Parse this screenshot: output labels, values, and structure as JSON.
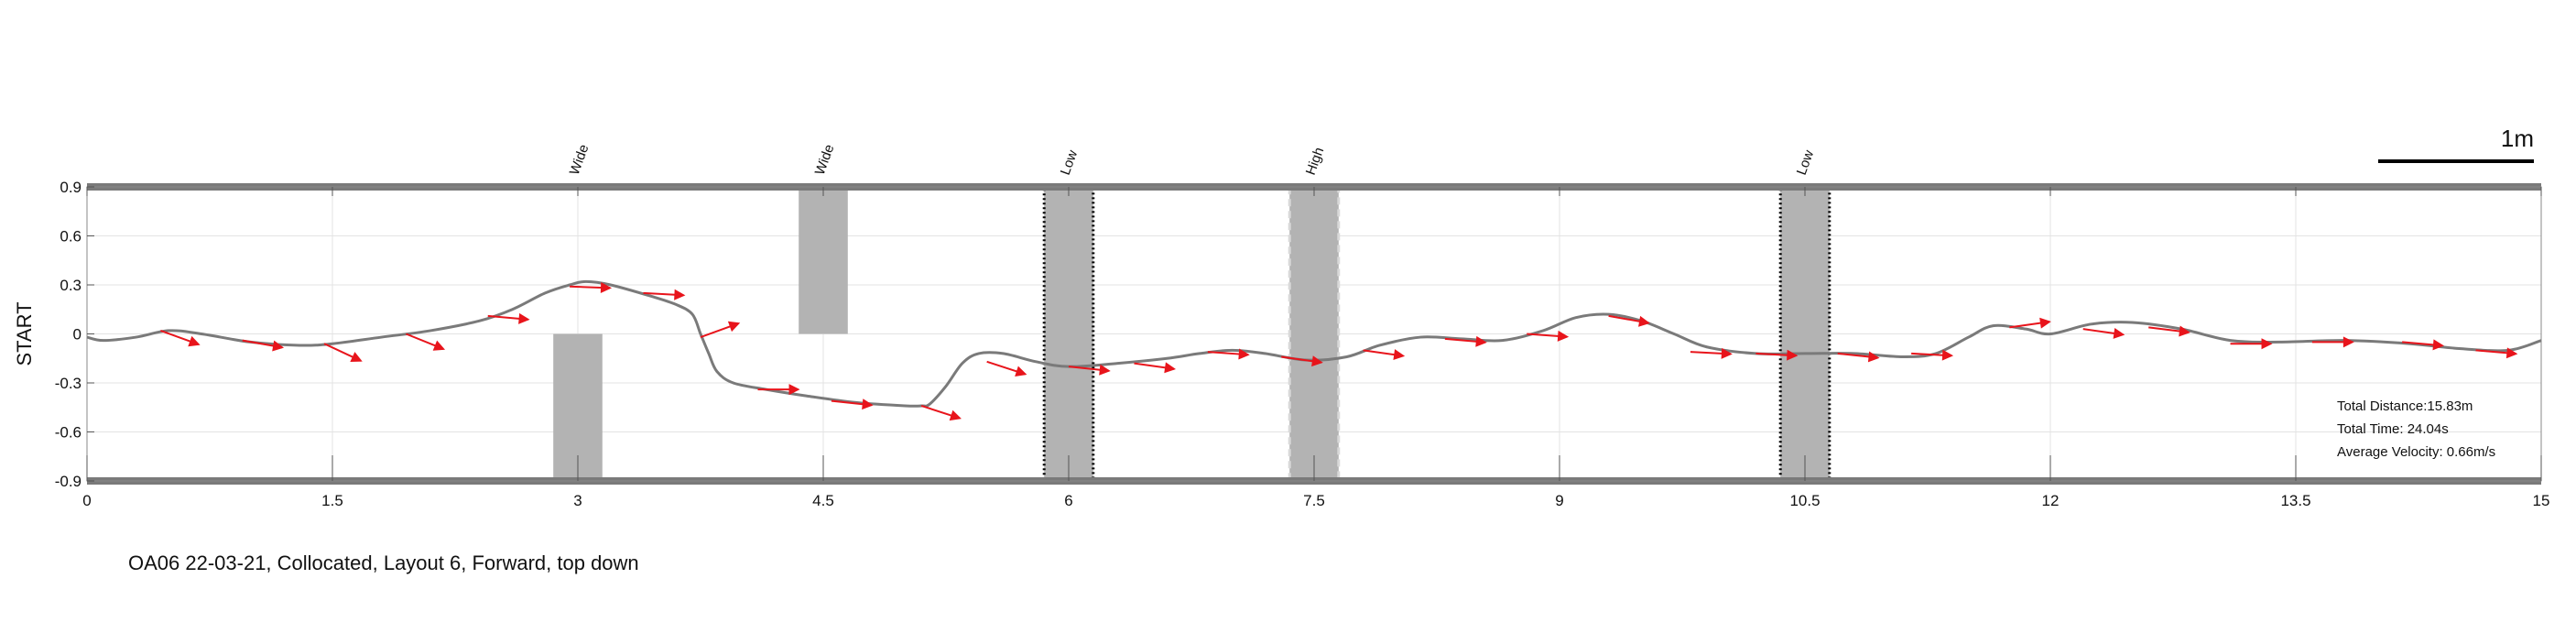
{
  "chart_data": {
    "type": "line",
    "ylabel": "START",
    "xlim": [
      0,
      15
    ],
    "ylim": [
      -0.9,
      0.9
    ],
    "x_ticks": [
      0,
      1.5,
      3,
      4.5,
      6,
      7.5,
      9,
      10.5,
      12,
      13.5,
      15
    ],
    "x_tick_labels": [
      "0",
      "1.5",
      "3",
      "4.5",
      "6",
      "7.5",
      "9",
      "10.5",
      "12",
      "13.5",
      "15"
    ],
    "y_ticks": [
      -0.9,
      -0.6,
      -0.3,
      0,
      0.3,
      0.6,
      0.9
    ],
    "y_tick_labels": [
      "-0.9",
      "-0.6",
      "-0.3",
      "0",
      "0.3",
      "0.6",
      "0.9"
    ],
    "grid": true,
    "path_color": "#7a7a7a",
    "arrow_color": "#e8141b",
    "obstacle_color": "#b3b3b3",
    "path": {
      "x": [
        0,
        0.1,
        0.3,
        0.5,
        0.7,
        1.0,
        1.3,
        1.5,
        1.8,
        2.1,
        2.4,
        2.6,
        2.8,
        2.95,
        3.05,
        3.2,
        3.45,
        3.6,
        3.7,
        3.75,
        3.8,
        3.85,
        3.95,
        4.15,
        4.4,
        4.7,
        5.0,
        5.1,
        5.15,
        5.25,
        5.35,
        5.45,
        5.6,
        5.8,
        6.0,
        6.3,
        6.6,
        6.8,
        7.0,
        7.2,
        7.45,
        7.7,
        7.9,
        8.15,
        8.4,
        8.65,
        8.9,
        9.1,
        9.3,
        9.5,
        9.7,
        9.9,
        10.2,
        10.5,
        10.8,
        11.1,
        11.3,
        11.5,
        11.65,
        11.85,
        12.0,
        12.25,
        12.5,
        12.8,
        13.1,
        13.4,
        13.8,
        14.2,
        14.5,
        14.8,
        15.0
      ],
      "y": [
        -0.02,
        -0.04,
        -0.02,
        0.02,
        0.0,
        -0.05,
        -0.07,
        -0.06,
        -0.02,
        0.02,
        0.08,
        0.15,
        0.25,
        0.3,
        0.32,
        0.3,
        0.23,
        0.18,
        0.12,
        0.0,
        -0.12,
        -0.23,
        -0.3,
        -0.34,
        -0.38,
        -0.42,
        -0.44,
        -0.44,
        -0.43,
        -0.32,
        -0.18,
        -0.12,
        -0.12,
        -0.17,
        -0.2,
        -0.18,
        -0.15,
        -0.12,
        -0.1,
        -0.12,
        -0.16,
        -0.14,
        -0.07,
        -0.02,
        -0.03,
        -0.04,
        0.02,
        0.1,
        0.12,
        0.08,
        0.0,
        -0.08,
        -0.12,
        -0.12,
        -0.12,
        -0.14,
        -0.12,
        -0.02,
        0.05,
        0.03,
        0.0,
        0.06,
        0.07,
        0.03,
        -0.04,
        -0.05,
        -0.04,
        -0.06,
        -0.09,
        -0.1,
        -0.04
      ]
    },
    "arrows": [
      {
        "x": 0.45,
        "y": 0.02,
        "angle": -20
      },
      {
        "x": 0.95,
        "y": -0.04,
        "angle": -10
      },
      {
        "x": 1.45,
        "y": -0.06,
        "angle": -25
      },
      {
        "x": 1.95,
        "y": 0.0,
        "angle": -22
      },
      {
        "x": 2.45,
        "y": 0.11,
        "angle": -5
      },
      {
        "x": 2.95,
        "y": 0.29,
        "angle": -2
      },
      {
        "x": 3.4,
        "y": 0.25,
        "angle": -3
      },
      {
        "x": 3.75,
        "y": -0.02,
        "angle": 20
      },
      {
        "x": 4.1,
        "y": -0.34,
        "angle": 0
      },
      {
        "x": 4.55,
        "y": -0.41,
        "angle": -6
      },
      {
        "x": 5.1,
        "y": -0.44,
        "angle": -18
      },
      {
        "x": 5.5,
        "y": -0.17,
        "angle": -18
      },
      {
        "x": 6.0,
        "y": -0.2,
        "angle": -6
      },
      {
        "x": 6.4,
        "y": -0.18,
        "angle": -8
      },
      {
        "x": 6.85,
        "y": -0.11,
        "angle": -4
      },
      {
        "x": 7.3,
        "y": -0.14,
        "angle": -8
      },
      {
        "x": 7.8,
        "y": -0.1,
        "angle": -8
      },
      {
        "x": 8.3,
        "y": -0.03,
        "angle": -5
      },
      {
        "x": 8.8,
        "y": 0.0,
        "angle": -4
      },
      {
        "x": 9.3,
        "y": 0.11,
        "angle": -10
      },
      {
        "x": 9.8,
        "y": -0.11,
        "angle": -3
      },
      {
        "x": 10.2,
        "y": -0.12,
        "angle": -3
      },
      {
        "x": 10.7,
        "y": -0.12,
        "angle": -6
      },
      {
        "x": 11.15,
        "y": -0.12,
        "angle": -3
      },
      {
        "x": 11.75,
        "y": 0.04,
        "angle": 8
      },
      {
        "x": 12.2,
        "y": 0.03,
        "angle": -8
      },
      {
        "x": 12.6,
        "y": 0.04,
        "angle": -7
      },
      {
        "x": 13.1,
        "y": -0.06,
        "angle": 0
      },
      {
        "x": 13.6,
        "y": -0.05,
        "angle": 0
      },
      {
        "x": 14.15,
        "y": -0.05,
        "angle": -5
      },
      {
        "x": 14.6,
        "y": -0.1,
        "angle": -5
      }
    ],
    "obstacles": [
      {
        "label": "Wide",
        "x0": 2.85,
        "x1": 3.15,
        "y0": -0.9,
        "y1": 0.0,
        "border": "none"
      },
      {
        "label": "Wide",
        "x0": 4.35,
        "x1": 4.65,
        "y0": 0.0,
        "y1": 0.9,
        "border": "none"
      },
      {
        "label": "Low",
        "x0": 5.85,
        "x1": 6.15,
        "y0": -0.9,
        "y1": 0.9,
        "border": "dotted"
      },
      {
        "label": "High",
        "x0": 7.35,
        "x1": 7.65,
        "y0": -0.9,
        "y1": 0.9,
        "border": "dashed"
      },
      {
        "label": "Low",
        "x0": 10.35,
        "x1": 10.65,
        "y0": -0.9,
        "y1": 0.9,
        "border": "dotted"
      }
    ],
    "scale_bar_label": "1m",
    "stats": {
      "total_distance": "Total Distance:15.83m",
      "total_time": "Total Time: 24.04s",
      "average_velocity": "Average Velocity: 0.66m/s"
    },
    "caption": "OA06 22-03-21, Collocated, Layout 6, Forward, top down"
  }
}
